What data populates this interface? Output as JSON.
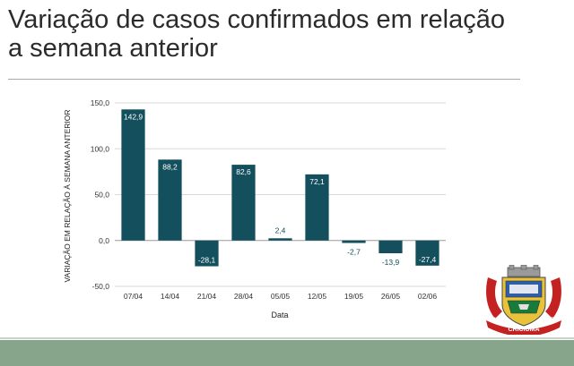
{
  "slide": {
    "title_line1": "Variação de casos confirmados em relação",
    "title_line2": "a semana anterior"
  },
  "crest": {
    "text": "CRICIÚMA",
    "year_left": "1880",
    "year_right": "1925"
  },
  "colors": {
    "bar": "#134f5c",
    "footer": "#86a58a"
  },
  "chart_data": {
    "type": "bar",
    "categories": [
      "07/04",
      "14/04",
      "21/04",
      "28/04",
      "05/05",
      "12/05",
      "19/05",
      "26/05",
      "02/06"
    ],
    "values": [
      142.9,
      88.2,
      -28.1,
      82.6,
      2.4,
      72.1,
      -2.7,
      -13.9,
      -27.4
    ],
    "data_labels": [
      "142,9",
      "88,2",
      "-28,1",
      "82,6",
      "2,4",
      "72,1",
      "-2,7",
      "-13,9",
      "-27,4"
    ],
    "title": "",
    "xlabel": "Data",
    "ylabel": "VARIAÇÃO EM RELAÇÃO À SEMANA ANTERIOR",
    "ylim": [
      -50,
      150
    ],
    "yticks": [
      150,
      100,
      50,
      0,
      -50
    ],
    "ytick_labels": [
      "150,0",
      "100,0",
      "50,0",
      "0,0",
      "-50,0"
    ],
    "grid": true,
    "legend": "none"
  }
}
